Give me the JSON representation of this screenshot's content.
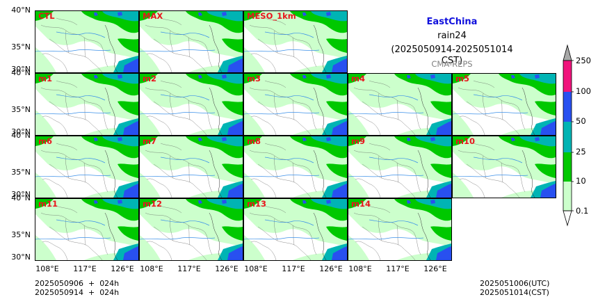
{
  "header": {
    "region": "EastChina",
    "variable": "rain24",
    "period": "(2025050914-2025051014 CST)",
    "source": "CMA-REPS"
  },
  "panels": [
    "CTL",
    "MAX",
    "MESO_1km",
    "m1",
    "m2",
    "m3",
    "m4",
    "m5",
    "m6",
    "m7",
    "m8",
    "m9",
    "m10",
    "m11",
    "m12",
    "m13",
    "m14"
  ],
  "lat_ticks": [
    "40°N",
    "35°N",
    "30°N"
  ],
  "lon_ticks": [
    "108°E",
    "117°E",
    "126°E"
  ],
  "colorbar": {
    "levels": [
      "0.1",
      "10",
      "25",
      "50",
      "100",
      "250"
    ],
    "colors": [
      "#ccffcc",
      "#00c800",
      "#00b4b4",
      "#2850f0",
      "#f0147c",
      "#a8a8a8"
    ]
  },
  "footer": {
    "init_line1": "2025050906  +  024h",
    "init_line2": "2025050914  +  024h",
    "valid_utc": "2025051006(UTC)",
    "valid_cst": "2025051014(CST)"
  },
  "colors": {
    "label_red": "#e8141c",
    "region_blue": "#1010dd",
    "source_grey": "#808080",
    "river": "#3a8fe8"
  }
}
